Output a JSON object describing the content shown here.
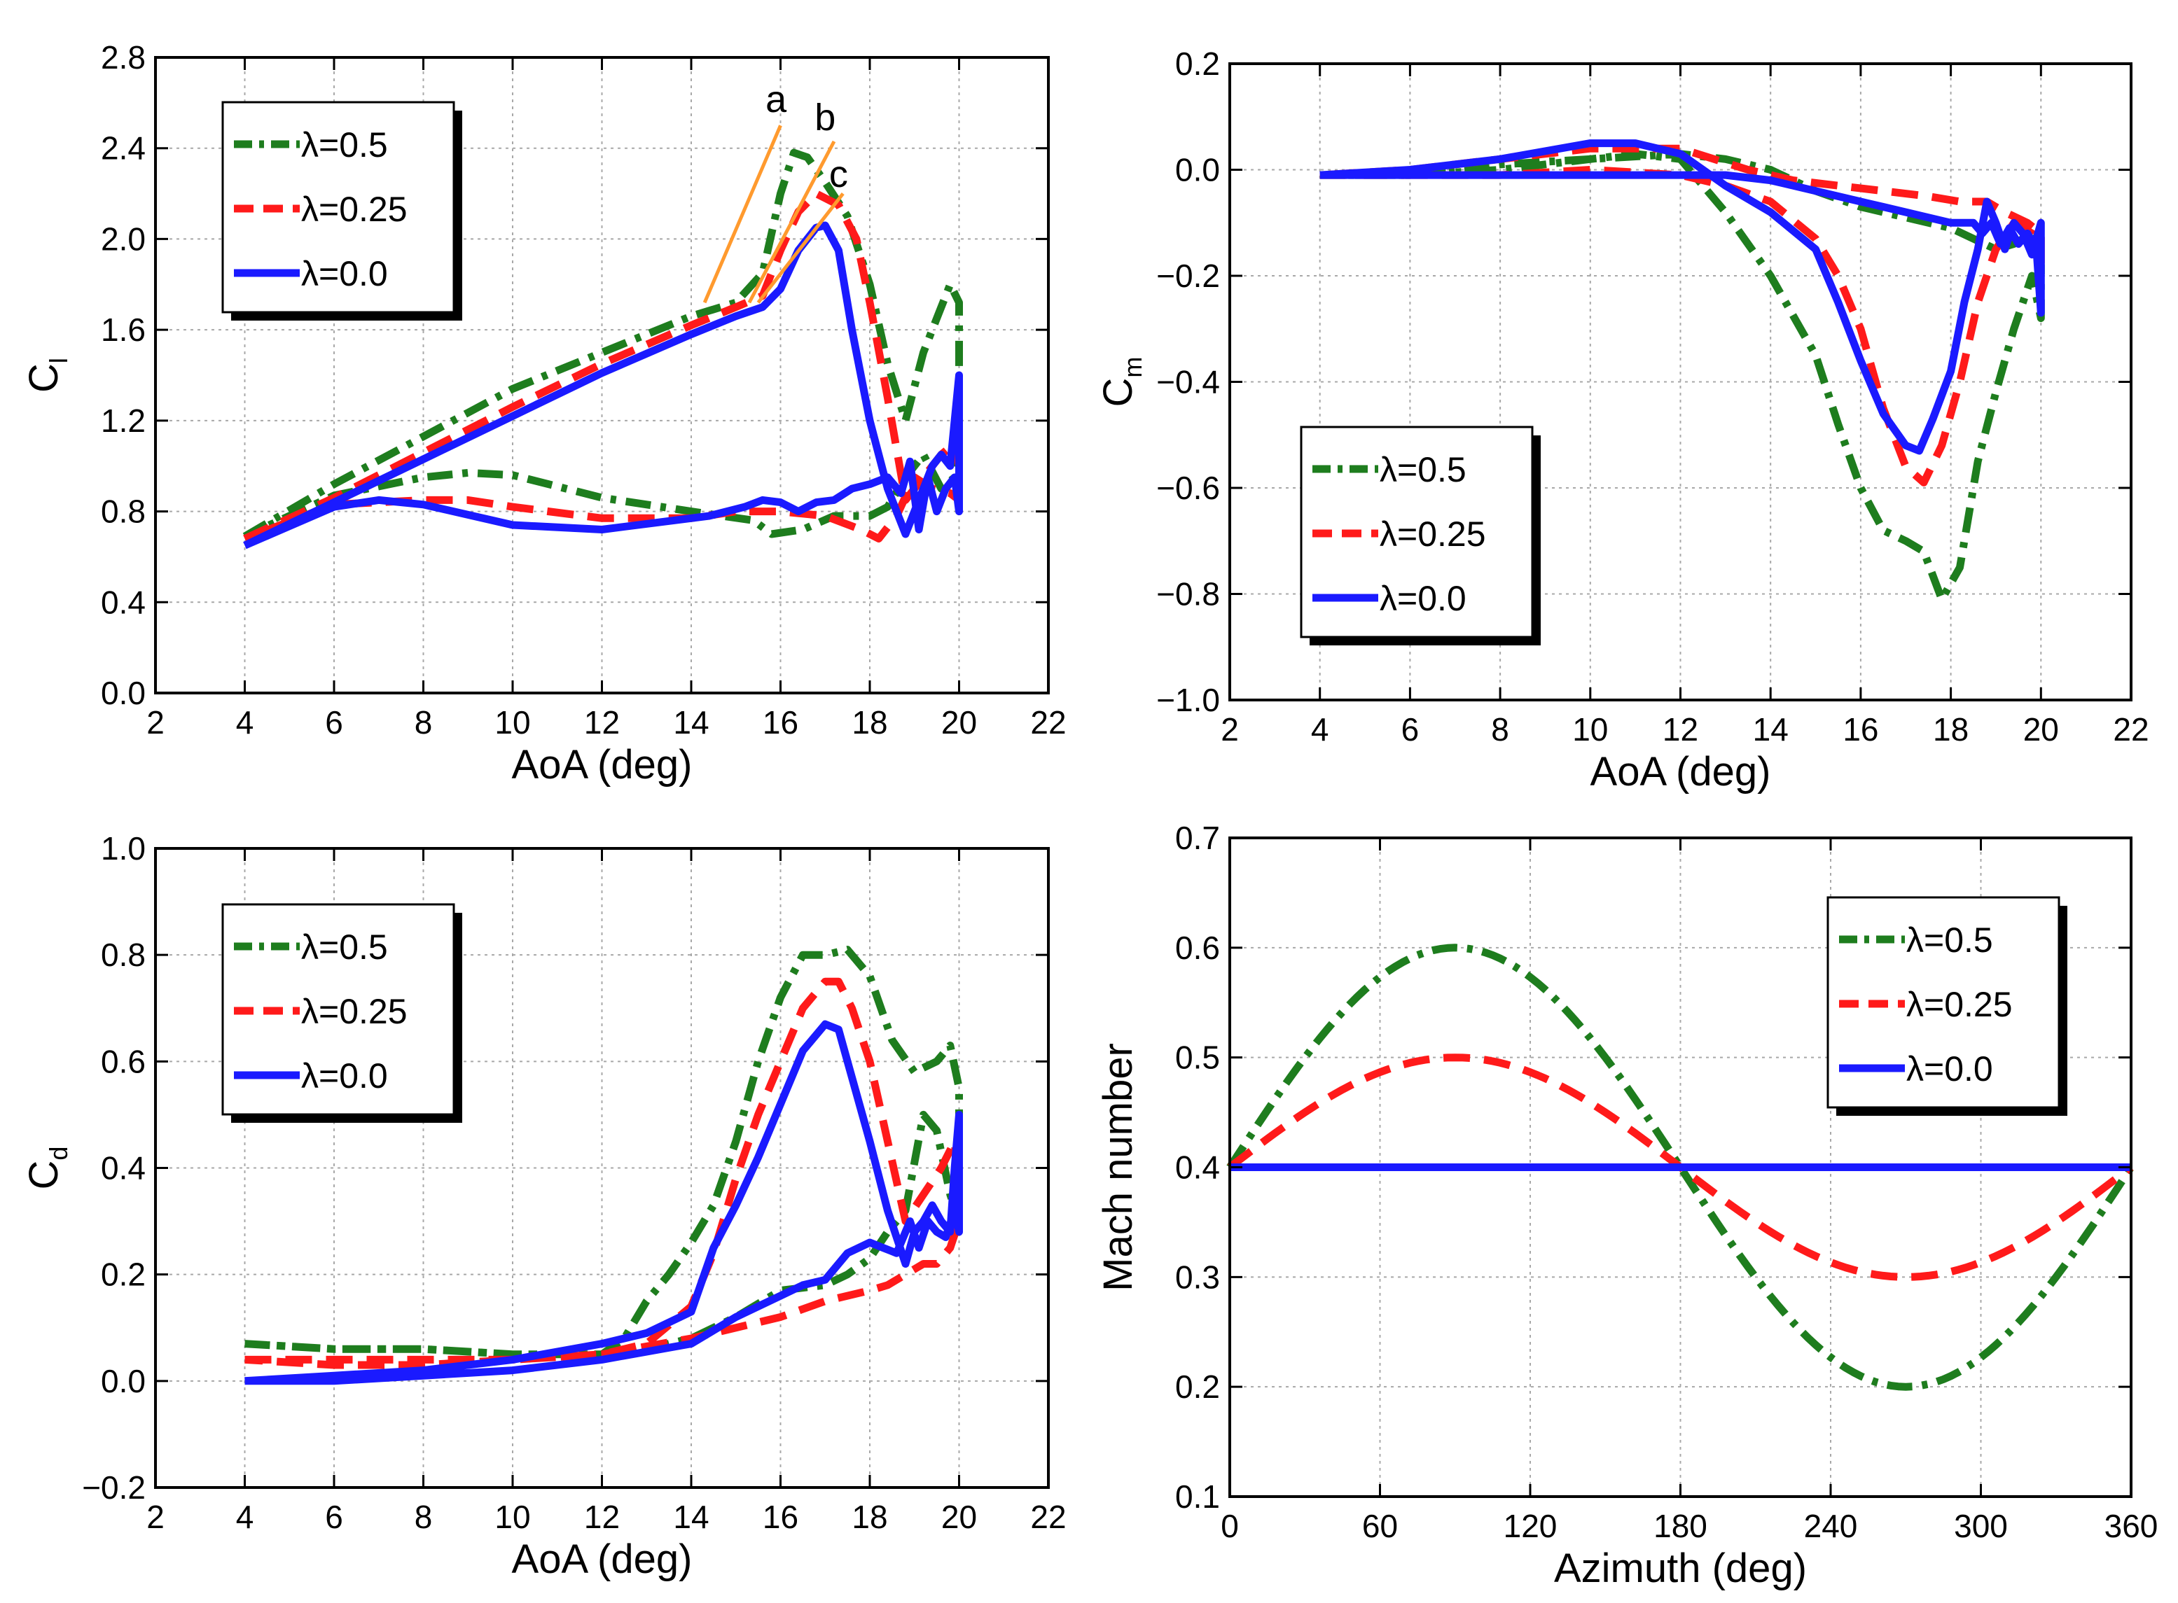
{
  "colors": {
    "lambda_0_5": "#1e7d1e",
    "lambda_0_25": "#ff1a1a",
    "lambda_0_0": "#1a1aff",
    "annotation_lines": "#ff9a2e",
    "grid": "#a8a8a8"
  },
  "chart_data": [
    {
      "id": "cl",
      "type": "line",
      "xlabel": "AoA (deg)",
      "ylabel_main": "C",
      "ylabel_sub": "l",
      "xlim": [
        2,
        22
      ],
      "ylim": [
        0.0,
        2.8
      ],
      "xticks": [
        "2",
        "4",
        "6",
        "8",
        "10",
        "12",
        "14",
        "16",
        "18",
        "20",
        "22"
      ],
      "yticks": [
        "0.0",
        "0.4",
        "0.8",
        "1.2",
        "1.6",
        "2.0",
        "2.4",
        "2.8"
      ],
      "grid": true,
      "legend_position": "top-left",
      "legend": [
        "λ=0.5",
        "λ=0.25",
        "λ=0.0"
      ],
      "annotations": [
        {
          "text": "a",
          "line": [
            [
              14.3,
              1.72
            ],
            [
              16.0,
              2.5
            ]
          ],
          "label_at": [
            15.9,
            2.56
          ]
        },
        {
          "text": "b",
          "line": [
            [
              15.3,
              1.72
            ],
            [
              17.2,
              2.43
            ]
          ],
          "label_at": [
            17.0,
            2.48
          ]
        },
        {
          "text": "c",
          "line": [
            [
              15.5,
              1.72
            ],
            [
              17.4,
              2.2
            ]
          ],
          "label_at": [
            17.3,
            2.23
          ]
        }
      ],
      "series": [
        {
          "name": "λ=0.5",
          "style": "dashdot",
          "x": [
            4,
            6,
            8,
            10,
            12,
            14,
            15,
            15.6,
            16,
            16.3,
            16.6,
            17,
            17.5,
            18,
            18.4,
            18.8,
            19.2,
            19.5,
            19.8,
            20,
            20,
            19.9,
            19.6,
            19.2,
            18.8,
            18.4,
            18,
            17.2,
            16.5,
            15.8,
            15.4,
            14,
            12,
            10,
            9,
            8,
            6,
            4
          ],
          "y": [
            0.69,
            0.92,
            1.13,
            1.34,
            1.5,
            1.66,
            1.72,
            1.85,
            2.2,
            2.38,
            2.36,
            2.25,
            2.1,
            1.8,
            1.45,
            1.2,
            1.5,
            1.65,
            1.8,
            1.72,
            1.2,
            0.95,
            0.9,
            1.05,
            0.95,
            0.82,
            0.78,
            0.78,
            0.72,
            0.7,
            0.76,
            0.8,
            0.86,
            0.96,
            0.97,
            0.95,
            0.87,
            0.69
          ]
        },
        {
          "name": "λ=0.25",
          "style": "dash",
          "x": [
            4,
            6,
            8,
            10,
            12,
            14,
            15,
            15.6,
            16,
            16.4,
            16.8,
            17.3,
            17.7,
            18,
            18.4,
            18.8,
            19.2,
            19.6,
            19.9,
            20,
            20,
            19.8,
            19.4,
            19,
            18.6,
            18.2,
            17.8,
            17,
            16,
            15,
            14,
            12,
            10,
            9,
            8,
            6,
            4
          ],
          "y": [
            0.68,
            0.86,
            1.06,
            1.26,
            1.45,
            1.62,
            1.7,
            1.75,
            1.95,
            2.12,
            2.2,
            2.15,
            2.0,
            1.72,
            1.3,
            0.85,
            0.95,
            1.05,
            1.1,
            1.0,
            0.85,
            0.88,
            0.9,
            0.95,
            0.78,
            0.68,
            0.72,
            0.78,
            0.8,
            0.8,
            0.77,
            0.77,
            0.82,
            0.85,
            0.85,
            0.83,
            0.68
          ]
        },
        {
          "name": "λ=0.0",
          "style": "solid",
          "x": [
            4,
            6,
            8,
            10,
            12,
            14,
            15,
            15.6,
            16,
            16.4,
            16.8,
            17,
            17.3,
            17.6,
            18,
            18.4,
            18.8,
            19.1,
            19.4,
            19.6,
            19.8,
            19.9,
            20,
            20,
            19.9,
            19.7,
            19.5,
            19.3,
            19.1,
            18.9,
            18.7,
            18.4,
            18,
            17.6,
            17.2,
            16.8,
            16.4,
            16,
            15.6,
            15.2,
            14.8,
            14.4,
            14,
            12,
            10,
            8,
            7,
            6,
            4
          ],
          "y": [
            0.65,
            0.84,
            1.03,
            1.22,
            1.41,
            1.58,
            1.66,
            1.7,
            1.78,
            1.95,
            2.05,
            2.06,
            1.95,
            1.6,
            1.2,
            0.9,
            0.7,
            0.85,
            1.0,
            1.05,
            1.0,
            1.2,
            1.4,
            0.8,
            0.95,
            0.9,
            0.8,
            0.95,
            0.72,
            1.02,
            0.88,
            0.95,
            0.92,
            0.9,
            0.85,
            0.84,
            0.8,
            0.84,
            0.85,
            0.82,
            0.8,
            0.78,
            0.77,
            0.72,
            0.74,
            0.83,
            0.85,
            0.82,
            0.65
          ]
        }
      ]
    },
    {
      "id": "cm",
      "type": "line",
      "xlabel": "AoA (deg)",
      "ylabel_main": "C",
      "ylabel_sub": "m",
      "xlim": [
        2,
        22
      ],
      "ylim": [
        -1.0,
        0.2
      ],
      "xticks": [
        "2",
        "4",
        "6",
        "8",
        "10",
        "12",
        "14",
        "16",
        "18",
        "20",
        "22"
      ],
      "yticks": [
        "-1.0",
        "-0.8",
        "-0.6",
        "-0.4",
        "-0.2",
        "0.0",
        "0.2"
      ],
      "grid": true,
      "legend_position": "bottom-left",
      "legend": [
        "λ=0.5",
        "λ=0.25",
        "λ=0.0"
      ],
      "series": [
        {
          "name": "λ=0.5",
          "style": "dashdot",
          "x": [
            4,
            6,
            8,
            10,
            11,
            12,
            13,
            14,
            15,
            15.5,
            16,
            16.5,
            17,
            17.4,
            17.8,
            18.2,
            18.6,
            19,
            19.4,
            19.8,
            20,
            20,
            19.8,
            19.4,
            19,
            18.5,
            18,
            17,
            16,
            15,
            14,
            13,
            12,
            10,
            8,
            6,
            4
          ],
          "y": [
            -0.01,
            -0.01,
            0.0,
            0.02,
            0.03,
            0.02,
            -0.08,
            -0.2,
            -0.35,
            -0.48,
            -0.6,
            -0.68,
            -0.7,
            -0.72,
            -0.81,
            -0.75,
            -0.55,
            -0.42,
            -0.3,
            -0.2,
            -0.28,
            -0.18,
            -0.12,
            -0.14,
            -0.15,
            -0.13,
            -0.11,
            -0.09,
            -0.07,
            -0.04,
            0.0,
            0.02,
            0.03,
            0.02,
            0.01,
            -0.01,
            -0.01
          ]
        },
        {
          "name": "λ=0.25",
          "style": "dash",
          "x": [
            4,
            6,
            8,
            10,
            12,
            13,
            14,
            15,
            15.5,
            16,
            16.5,
            17,
            17.4,
            17.8,
            18.2,
            18.6,
            19,
            19.4,
            19.8,
            20,
            20,
            19.7,
            19.2,
            18.8,
            18.2,
            17.5,
            16.5,
            15.5,
            14.5,
            13.5,
            12,
            10,
            8,
            6,
            4
          ],
          "y": [
            -0.01,
            -0.01,
            -0.01,
            0.0,
            -0.01,
            -0.03,
            -0.06,
            -0.13,
            -0.2,
            -0.3,
            -0.45,
            -0.56,
            -0.59,
            -0.52,
            -0.4,
            -0.25,
            -0.15,
            -0.1,
            -0.12,
            -0.2,
            -0.12,
            -0.1,
            -0.08,
            -0.06,
            -0.06,
            -0.05,
            -0.04,
            -0.03,
            -0.02,
            0.0,
            0.04,
            0.04,
            0.02,
            0.0,
            -0.01
          ]
        },
        {
          "name": "λ=0.0",
          "style": "solid",
          "x": [
            4,
            6,
            8,
            10,
            11,
            12,
            13,
            14,
            15,
            15.5,
            16,
            16.5,
            17,
            17.3,
            17.6,
            18,
            18.3,
            18.6,
            18.8,
            19,
            19.2,
            19.4,
            19.6,
            19.8,
            20,
            20,
            19.9,
            19.7,
            19.5,
            19.3,
            19.1,
            18.9,
            18.7,
            18.5,
            18,
            17.5,
            17,
            16.5,
            16,
            15,
            14,
            13,
            12,
            10,
            8,
            6,
            4
          ],
          "y": [
            -0.01,
            0.0,
            0.02,
            0.05,
            0.05,
            0.03,
            -0.03,
            -0.08,
            -0.15,
            -0.25,
            -0.36,
            -0.46,
            -0.52,
            -0.53,
            -0.47,
            -0.38,
            -0.25,
            -0.15,
            -0.06,
            -0.1,
            -0.15,
            -0.1,
            -0.12,
            -0.16,
            -0.1,
            -0.27,
            -0.15,
            -0.12,
            -0.14,
            -0.11,
            -0.14,
            -0.1,
            -0.12,
            -0.1,
            -0.1,
            -0.09,
            -0.08,
            -0.07,
            -0.06,
            -0.04,
            -0.02,
            -0.01,
            -0.01,
            -0.01,
            -0.01,
            -0.01,
            -0.01
          ]
        }
      ]
    },
    {
      "id": "cd",
      "type": "line",
      "xlabel": "AoA (deg)",
      "ylabel_main": "C",
      "ylabel_sub": "d",
      "xlim": [
        2,
        22
      ],
      "ylim": [
        -0.2,
        1.0
      ],
      "xticks": [
        "2",
        "4",
        "6",
        "8",
        "10",
        "12",
        "14",
        "16",
        "18",
        "20",
        "22"
      ],
      "yticks": [
        "-0.2",
        "0.0",
        "0.2",
        "0.4",
        "0.6",
        "0.8",
        "1.0"
      ],
      "grid": true,
      "legend_position": "top-left",
      "legend": [
        "λ=0.5",
        "λ=0.25",
        "λ=0.0"
      ],
      "series": [
        {
          "name": "λ=0.5",
          "style": "dashdot",
          "x": [
            4,
            6,
            8,
            10,
            12,
            12.5,
            13,
            13.5,
            14,
            14.5,
            15,
            15.5,
            16,
            16.5,
            17,
            17.5,
            18,
            18.5,
            19,
            19.5,
            19.8,
            20,
            20,
            19.8,
            19.5,
            19.2,
            18.8,
            18.4,
            18,
            17.5,
            17,
            16,
            15,
            14,
            13,
            12,
            10,
            8,
            6,
            4
          ],
          "y": [
            0.07,
            0.06,
            0.06,
            0.05,
            0.05,
            0.08,
            0.15,
            0.2,
            0.26,
            0.33,
            0.45,
            0.6,
            0.72,
            0.8,
            0.8,
            0.81,
            0.76,
            0.64,
            0.58,
            0.6,
            0.63,
            0.55,
            0.3,
            0.35,
            0.47,
            0.5,
            0.32,
            0.28,
            0.23,
            0.2,
            0.18,
            0.17,
            0.12,
            0.08,
            0.06,
            0.05,
            0.05,
            0.06,
            0.06,
            0.07
          ]
        },
        {
          "name": "λ=0.25",
          "style": "dash",
          "x": [
            4,
            6,
            8,
            10,
            12,
            13,
            14,
            14.5,
            15,
            15.5,
            16,
            16.5,
            17,
            17.3,
            17.6,
            18,
            18.4,
            18.8,
            19.2,
            19.6,
            19.9,
            20,
            20,
            19.8,
            19.5,
            19.2,
            18.8,
            18.4,
            18,
            17,
            16,
            15,
            14,
            12,
            10,
            8,
            6,
            4
          ],
          "y": [
            0.04,
            0.04,
            0.04,
            0.04,
            0.05,
            0.07,
            0.14,
            0.24,
            0.38,
            0.5,
            0.6,
            0.7,
            0.75,
            0.75,
            0.7,
            0.6,
            0.45,
            0.3,
            0.35,
            0.4,
            0.45,
            0.35,
            0.3,
            0.25,
            0.22,
            0.22,
            0.2,
            0.18,
            0.17,
            0.15,
            0.12,
            0.1,
            0.08,
            0.05,
            0.04,
            0.03,
            0.03,
            0.04
          ]
        },
        {
          "name": "λ=0.0",
          "style": "solid",
          "x": [
            4,
            6,
            8,
            10,
            12,
            13,
            14,
            14.5,
            15,
            15.5,
            16,
            16.5,
            17,
            17.3,
            17.6,
            18,
            18.4,
            18.8,
            19,
            19.2,
            19.4,
            19.6,
            19.8,
            19.9,
            20,
            20,
            19.9,
            19.7,
            19.5,
            19.3,
            19.1,
            18.9,
            18.6,
            18.3,
            18,
            17.5,
            17,
            16.5,
            16,
            15,
            14,
            12,
            10,
            8,
            6,
            4
          ],
          "y": [
            0.0,
            0.01,
            0.02,
            0.04,
            0.07,
            0.09,
            0.13,
            0.25,
            0.33,
            0.42,
            0.52,
            0.62,
            0.67,
            0.66,
            0.57,
            0.45,
            0.32,
            0.22,
            0.28,
            0.3,
            0.33,
            0.3,
            0.28,
            0.4,
            0.5,
            0.28,
            0.32,
            0.27,
            0.28,
            0.3,
            0.25,
            0.3,
            0.24,
            0.25,
            0.26,
            0.24,
            0.19,
            0.18,
            0.16,
            0.12,
            0.07,
            0.04,
            0.02,
            0.01,
            0.0,
            0.0
          ]
        }
      ]
    },
    {
      "id": "mach",
      "type": "line",
      "xlabel": "Azimuth (deg)",
      "ylabel_main": "Mach number",
      "ylabel_sub": "",
      "xlim": [
        0,
        360
      ],
      "ylim": [
        0.1,
        0.7
      ],
      "xticks": [
        "0",
        "60",
        "120",
        "180",
        "240",
        "300",
        "360"
      ],
      "yticks": [
        "0.1",
        "0.2",
        "0.3",
        "0.4",
        "0.5",
        "0.6",
        "0.7"
      ],
      "grid": true,
      "legend_position": "top-right",
      "legend": [
        "λ=0.5",
        "λ=0.25",
        "λ=0.0"
      ],
      "series": [
        {
          "name": "λ=0.5",
          "style": "dashdot",
          "function": "0.4 + 0.2*sin(x)"
        },
        {
          "name": "λ=0.25",
          "style": "dash",
          "function": "0.4 + 0.1*sin(x)"
        },
        {
          "name": "λ=0.0",
          "style": "solid",
          "function": "0.4"
        }
      ]
    }
  ]
}
